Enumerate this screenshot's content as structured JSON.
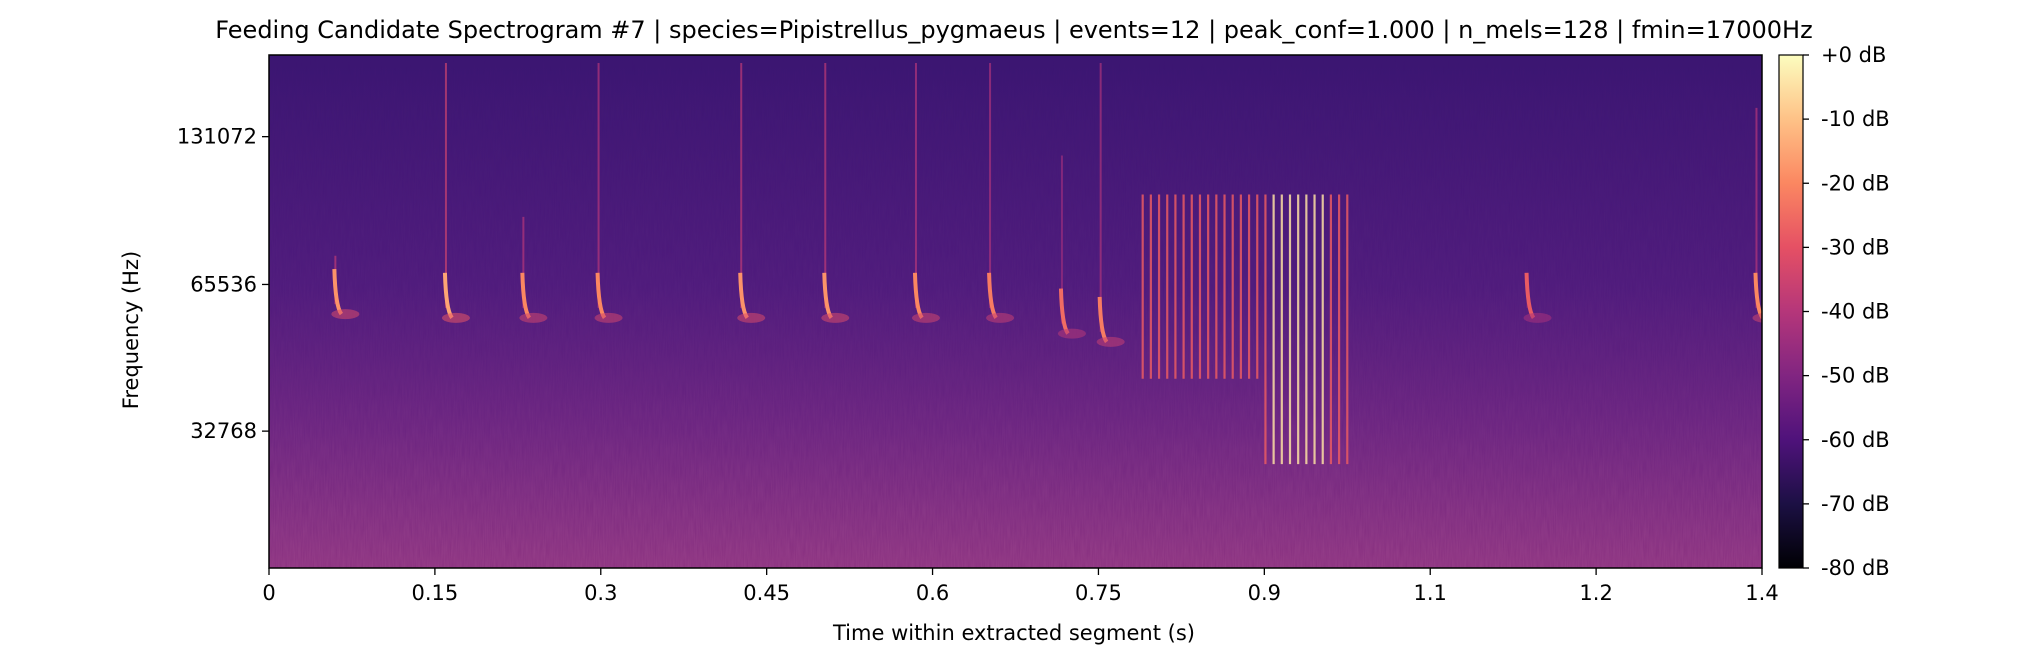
{
  "chart_data": {
    "type": "heatmap",
    "subtype": "mel spectrogram",
    "title": "Feeding Candidate Spectrogram #7 | species=Pipistrellus_pygmaeus | events=12 | peak_conf=1.000 | n_mels=128 | fmin=17000Hz",
    "xlabel": "Time within extracted segment (s)",
    "ylabel": "Frequency (Hz)",
    "x_ticks": [
      {
        "value": 0,
        "label": "0"
      },
      {
        "value": 0.15,
        "label": "0.15"
      },
      {
        "value": 0.3,
        "label": "0.3"
      },
      {
        "value": 0.45,
        "label": "0.45"
      },
      {
        "value": 0.6,
        "label": "0.6"
      },
      {
        "value": 0.75,
        "label": "0.75"
      },
      {
        "value": 0.9,
        "label": "0.9"
      },
      {
        "value": 1.05,
        "label": "1.1"
      },
      {
        "value": 1.2,
        "label": "1.2"
      },
      {
        "value": 1.35,
        "label": "1.4"
      }
    ],
    "xlim": [
      0,
      1.35
    ],
    "y_scale": "mel",
    "y_ticks": [
      {
        "value": 32768,
        "label": "32768"
      },
      {
        "value": 65536,
        "label": "65536"
      },
      {
        "value": 131072,
        "label": "131072"
      }
    ],
    "ylim": [
      17000,
      192000
    ],
    "colorbar": {
      "colormap": "magma",
      "range": [
        -80,
        0
      ],
      "ticks": [
        {
          "value": 0,
          "label": "+0 dB"
        },
        {
          "value": -10,
          "label": "-10 dB"
        },
        {
          "value": -20,
          "label": "-20 dB"
        },
        {
          "value": -30,
          "label": "-30 dB"
        },
        {
          "value": -40,
          "label": "-40 dB"
        },
        {
          "value": -50,
          "label": "-50 dB"
        },
        {
          "value": -60,
          "label": "-60 dB"
        },
        {
          "value": -70,
          "label": "-70 dB"
        },
        {
          "value": -80,
          "label": "-80 dB"
        }
      ]
    },
    "events": [
      {
        "time": 0.06,
        "peak_hz": 57000,
        "top_hz": 75000,
        "level_db": -18
      },
      {
        "time": 0.16,
        "peak_hz": 56000,
        "top_hz": 185000,
        "level_db": -15
      },
      {
        "time": 0.23,
        "peak_hz": 56000,
        "top_hz": 90000,
        "level_db": -20
      },
      {
        "time": 0.298,
        "peak_hz": 56000,
        "top_hz": 185000,
        "level_db": -20
      },
      {
        "time": 0.427,
        "peak_hz": 56000,
        "top_hz": 185000,
        "level_db": -18
      },
      {
        "time": 0.503,
        "peak_hz": 56000,
        "top_hz": 185000,
        "level_db": -18
      },
      {
        "time": 0.585,
        "peak_hz": 56000,
        "top_hz": 185000,
        "level_db": -20
      },
      {
        "time": 0.652,
        "peak_hz": 56000,
        "top_hz": 185000,
        "level_db": -22
      },
      {
        "time": 0.717,
        "peak_hz": 52000,
        "top_hz": 120000,
        "level_db": -25
      },
      {
        "time": 0.752,
        "peak_hz": 50000,
        "top_hz": 185000,
        "level_db": -22
      },
      {
        "time": 1.138,
        "peak_hz": 56000,
        "top_hz": 62000,
        "level_db": -28
      },
      {
        "time": 1.345,
        "peak_hz": 56000,
        "top_hz": 150000,
        "level_db": -20
      }
    ],
    "buzz": {
      "start": 0.79,
      "end": 0.975,
      "pulse_count": 26,
      "low_hz": 28000,
      "high_hz": 100000,
      "peak_db": -5
    }
  }
}
